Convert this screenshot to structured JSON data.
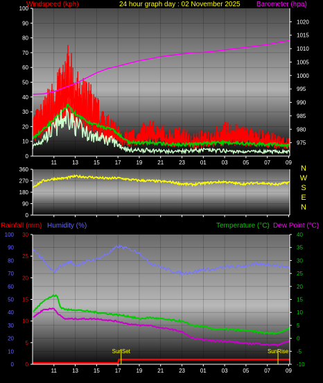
{
  "header": {
    "left_label": "Windspeed (kph)",
    "title": "24 hour graph day : 02 November 2025",
    "right_label": "Barometer (hpa)"
  },
  "bottom_header": {
    "rainfall_label": "Rainfall (mm)",
    "humidity_label": "Humidity (%)",
    "temperature_label": "Temperature (°C)",
    "dewpoint_label": "Dew Point (°C)"
  },
  "x_ticks": [
    "11",
    "13",
    "15",
    "17",
    "19",
    "21",
    "23",
    "01",
    "03",
    "05",
    "07",
    "09"
  ],
  "compass": [
    "N",
    "W",
    "S",
    "E",
    "N"
  ],
  "colors": {
    "wind_gust": "#ff0000",
    "wind_avg": "#00cc00",
    "wind_speed": "#ccffcc",
    "barometer": "#ff00ff",
    "direction": "#ffff00",
    "humidity": "#7777ff",
    "temperature": "#00cc00",
    "dewpoint": "#cc00cc",
    "rainfall": "#ff0000",
    "title": "#ffff00",
    "label_red": "#ff0000",
    "label_blue": "#6666ff",
    "label_green": "#00cc00",
    "label_magenta": "#ff00ff",
    "tick_white": "#ffffff",
    "sun_marker": "#ffff00"
  },
  "chart_data": [
    {
      "type": "line",
      "name": "wind-barometer",
      "x_range_hours": [
        9.0,
        33.1
      ],
      "y_left": {
        "range": [
          0,
          100
        ],
        "ticks": [
          "0",
          "10",
          "20",
          "30",
          "40",
          "50",
          "60",
          "70",
          "80",
          "90",
          "100"
        ]
      },
      "y_right": {
        "range": [
          970,
          1025
        ],
        "ticks": [
          "975",
          "980",
          "985",
          "990",
          "995",
          "1000",
          "1005",
          "1010",
          "1015",
          "1020"
        ]
      },
      "series": [
        {
          "key": "gust",
          "x": [
            9.0,
            10.0,
            11.0,
            11.5,
            12.0,
            12.4,
            12.8,
            13.2,
            13.8,
            14.5,
            15.2,
            16.0,
            17.0,
            18.0,
            19.0,
            20.0,
            21.0,
            22.0,
            23.0,
            24.0,
            25.0,
            26.0,
            27.0,
            28.0,
            29.0,
            30.0,
            31.0,
            32.0,
            33.1
          ],
          "y": [
            22,
            30,
            42,
            48,
            55,
            60,
            50,
            45,
            42,
            38,
            30,
            22,
            18,
            14,
            16,
            20,
            18,
            14,
            16,
            12,
            14,
            15,
            18,
            17,
            16,
            15,
            13,
            12,
            10
          ]
        },
        {
          "key": "average",
          "x": [
            9.0,
            10.0,
            11.0,
            11.5,
            12.0,
            12.4,
            12.8,
            13.5,
            14.5,
            15.5,
            16.5,
            17.0,
            18.0,
            20.0,
            22.0,
            24.0,
            26.0,
            28.0,
            30.0,
            32.0,
            33.1
          ],
          "y": [
            12,
            18,
            25,
            28,
            32,
            35,
            30,
            26,
            22,
            20,
            18,
            15,
            9,
            9,
            8,
            8,
            9,
            9,
            8,
            8,
            7
          ]
        },
        {
          "key": "speed",
          "x": [
            9.0,
            10.0,
            11.0,
            11.5,
            12.0,
            12.4,
            12.8,
            13.5,
            14.5,
            15.5,
            16.5,
            17.0,
            18.0,
            20.0,
            22.0,
            24.0,
            26.0,
            28.0,
            30.0,
            32.0,
            33.1
          ],
          "y": [
            6,
            12,
            18,
            22,
            26,
            28,
            22,
            18,
            14,
            12,
            10,
            8,
            4,
            4,
            3,
            4,
            4,
            3,
            3,
            3,
            3
          ]
        },
        {
          "key": "barometer",
          "x": [
            9.0,
            10.0,
            11.0,
            12.0,
            13.0,
            14.0,
            15.0,
            16.0,
            17.0,
            18.0,
            19.0,
            20.0,
            21.0,
            22.0,
            23.0,
            24.0,
            25.0,
            26.0,
            27.0,
            28.0,
            29.0,
            30.0,
            31.0,
            32.0,
            33.1
          ],
          "y": [
            993,
            993.2,
            994,
            995.5,
            997,
            999,
            1001,
            1002.5,
            1003.5,
            1004.5,
            1005.5,
            1006.2,
            1007,
            1007.5,
            1008,
            1008.5,
            1008.6,
            1009,
            1009.5,
            1010,
            1010.5,
            1011,
            1011.5,
            1012.3,
            1013
          ]
        }
      ]
    },
    {
      "type": "line",
      "name": "wind-direction",
      "x_range_hours": [
        9.0,
        33.1
      ],
      "y_range": [
        0,
        360
      ],
      "y_ticks": [
        "0",
        "90",
        "180",
        "270",
        "360"
      ],
      "series": [
        {
          "key": "direction",
          "x": [
            9.0,
            10.0,
            11.0,
            12.0,
            13.0,
            14.0,
            15.0,
            16.0,
            17.0,
            18.0,
            19.0,
            20.0,
            21.0,
            22.0,
            23.0,
            24.0,
            25.0,
            26.0,
            27.0,
            28.0,
            29.0,
            30.0,
            31.0,
            32.0,
            33.1
          ],
          "y": [
            220,
            270,
            285,
            290,
            305,
            300,
            295,
            288,
            292,
            280,
            272,
            270,
            265,
            260,
            245,
            240,
            250,
            258,
            262,
            250,
            245,
            255,
            248,
            240,
            260
          ]
        }
      ]
    },
    {
      "type": "line",
      "name": "temp-humidity-rain",
      "x_range_hours": [
        9.0,
        33.1
      ],
      "y_rainfall": {
        "range": [
          0,
          30
        ],
        "ticks": [
          "0",
          "5",
          "10",
          "15",
          "20",
          "25",
          "30"
        ]
      },
      "y_humidity": {
        "range": [
          0,
          100
        ],
        "ticks": [
          "0",
          "10",
          "20",
          "30",
          "40",
          "50",
          "60",
          "70",
          "80",
          "90",
          "100"
        ]
      },
      "y_temperature": {
        "range": [
          -10,
          40
        ],
        "ticks": [
          "-10",
          "-5",
          "0",
          "5",
          "10",
          "15",
          "20",
          "25",
          "30",
          "35",
          "40"
        ]
      },
      "annotations": [
        {
          "text": "SunSet",
          "x": 17.3
        },
        {
          "text": "SunRise",
          "x": 32.0
        }
      ],
      "series": [
        {
          "key": "humidity",
          "x": [
            9.0,
            9.5,
            10.5,
            11.0,
            11.5,
            12.5,
            13.0,
            14.0,
            15.0,
            16.0,
            16.5,
            17.0,
            18.0,
            19.0,
            20.0,
            21.0,
            22.0,
            23.0,
            24.0,
            25.0,
            26.0,
            27.0,
            28.0,
            29.0,
            30.0,
            31.0,
            32.0,
            33.1
          ],
          "y": [
            89,
            85,
            75,
            71,
            75,
            79,
            76,
            79,
            81,
            85,
            88,
            91,
            89,
            86,
            78,
            75,
            72,
            70,
            71,
            73,
            73,
            75,
            75,
            76,
            77,
            77,
            76,
            75
          ]
        },
        {
          "key": "temperature",
          "x": [
            9.0,
            10.0,
            11.0,
            11.3,
            11.6,
            12.2,
            13.0,
            14.0,
            15.0,
            16.0,
            17.0,
            18.0,
            19.0,
            20.0,
            21.0,
            22.0,
            23.0,
            24.0,
            25.0,
            26.0,
            27.0,
            28.0,
            29.0,
            30.0,
            31.0,
            32.0,
            33.1
          ],
          "y": [
            10,
            14.5,
            16.5,
            16.3,
            12,
            11,
            11,
            10.5,
            10,
            9.5,
            9,
            8.5,
            7.5,
            8,
            7.5,
            7,
            6.5,
            5,
            4.5,
            3.5,
            3.5,
            3.2,
            3,
            2.5,
            2,
            2,
            4
          ]
        },
        {
          "key": "dewpoint",
          "x": [
            9.0,
            10.0,
            11.0,
            11.5,
            12.0,
            13.0,
            14.0,
            15.0,
            16.0,
            17.0,
            18.0,
            19.0,
            20.0,
            21.0,
            22.0,
            23.0,
            24.0,
            25.0,
            26.0,
            27.0,
            28.0,
            29.0,
            30.0,
            31.0,
            32.0,
            33.1
          ],
          "y": [
            8,
            11,
            11.5,
            9,
            7.5,
            7.5,
            7.5,
            7.5,
            7,
            6.5,
            5.5,
            5,
            5,
            4,
            3.5,
            2.5,
            0,
            -0.5,
            -1,
            -1,
            -1.5,
            -2,
            -2,
            -2.5,
            -2.5,
            -1
          ]
        },
        {
          "key": "rainfall",
          "x": [
            9.0,
            17.0,
            17.1,
            33.1
          ],
          "y": [
            0.3,
            0.3,
            1.1,
            1.1
          ]
        }
      ]
    }
  ]
}
